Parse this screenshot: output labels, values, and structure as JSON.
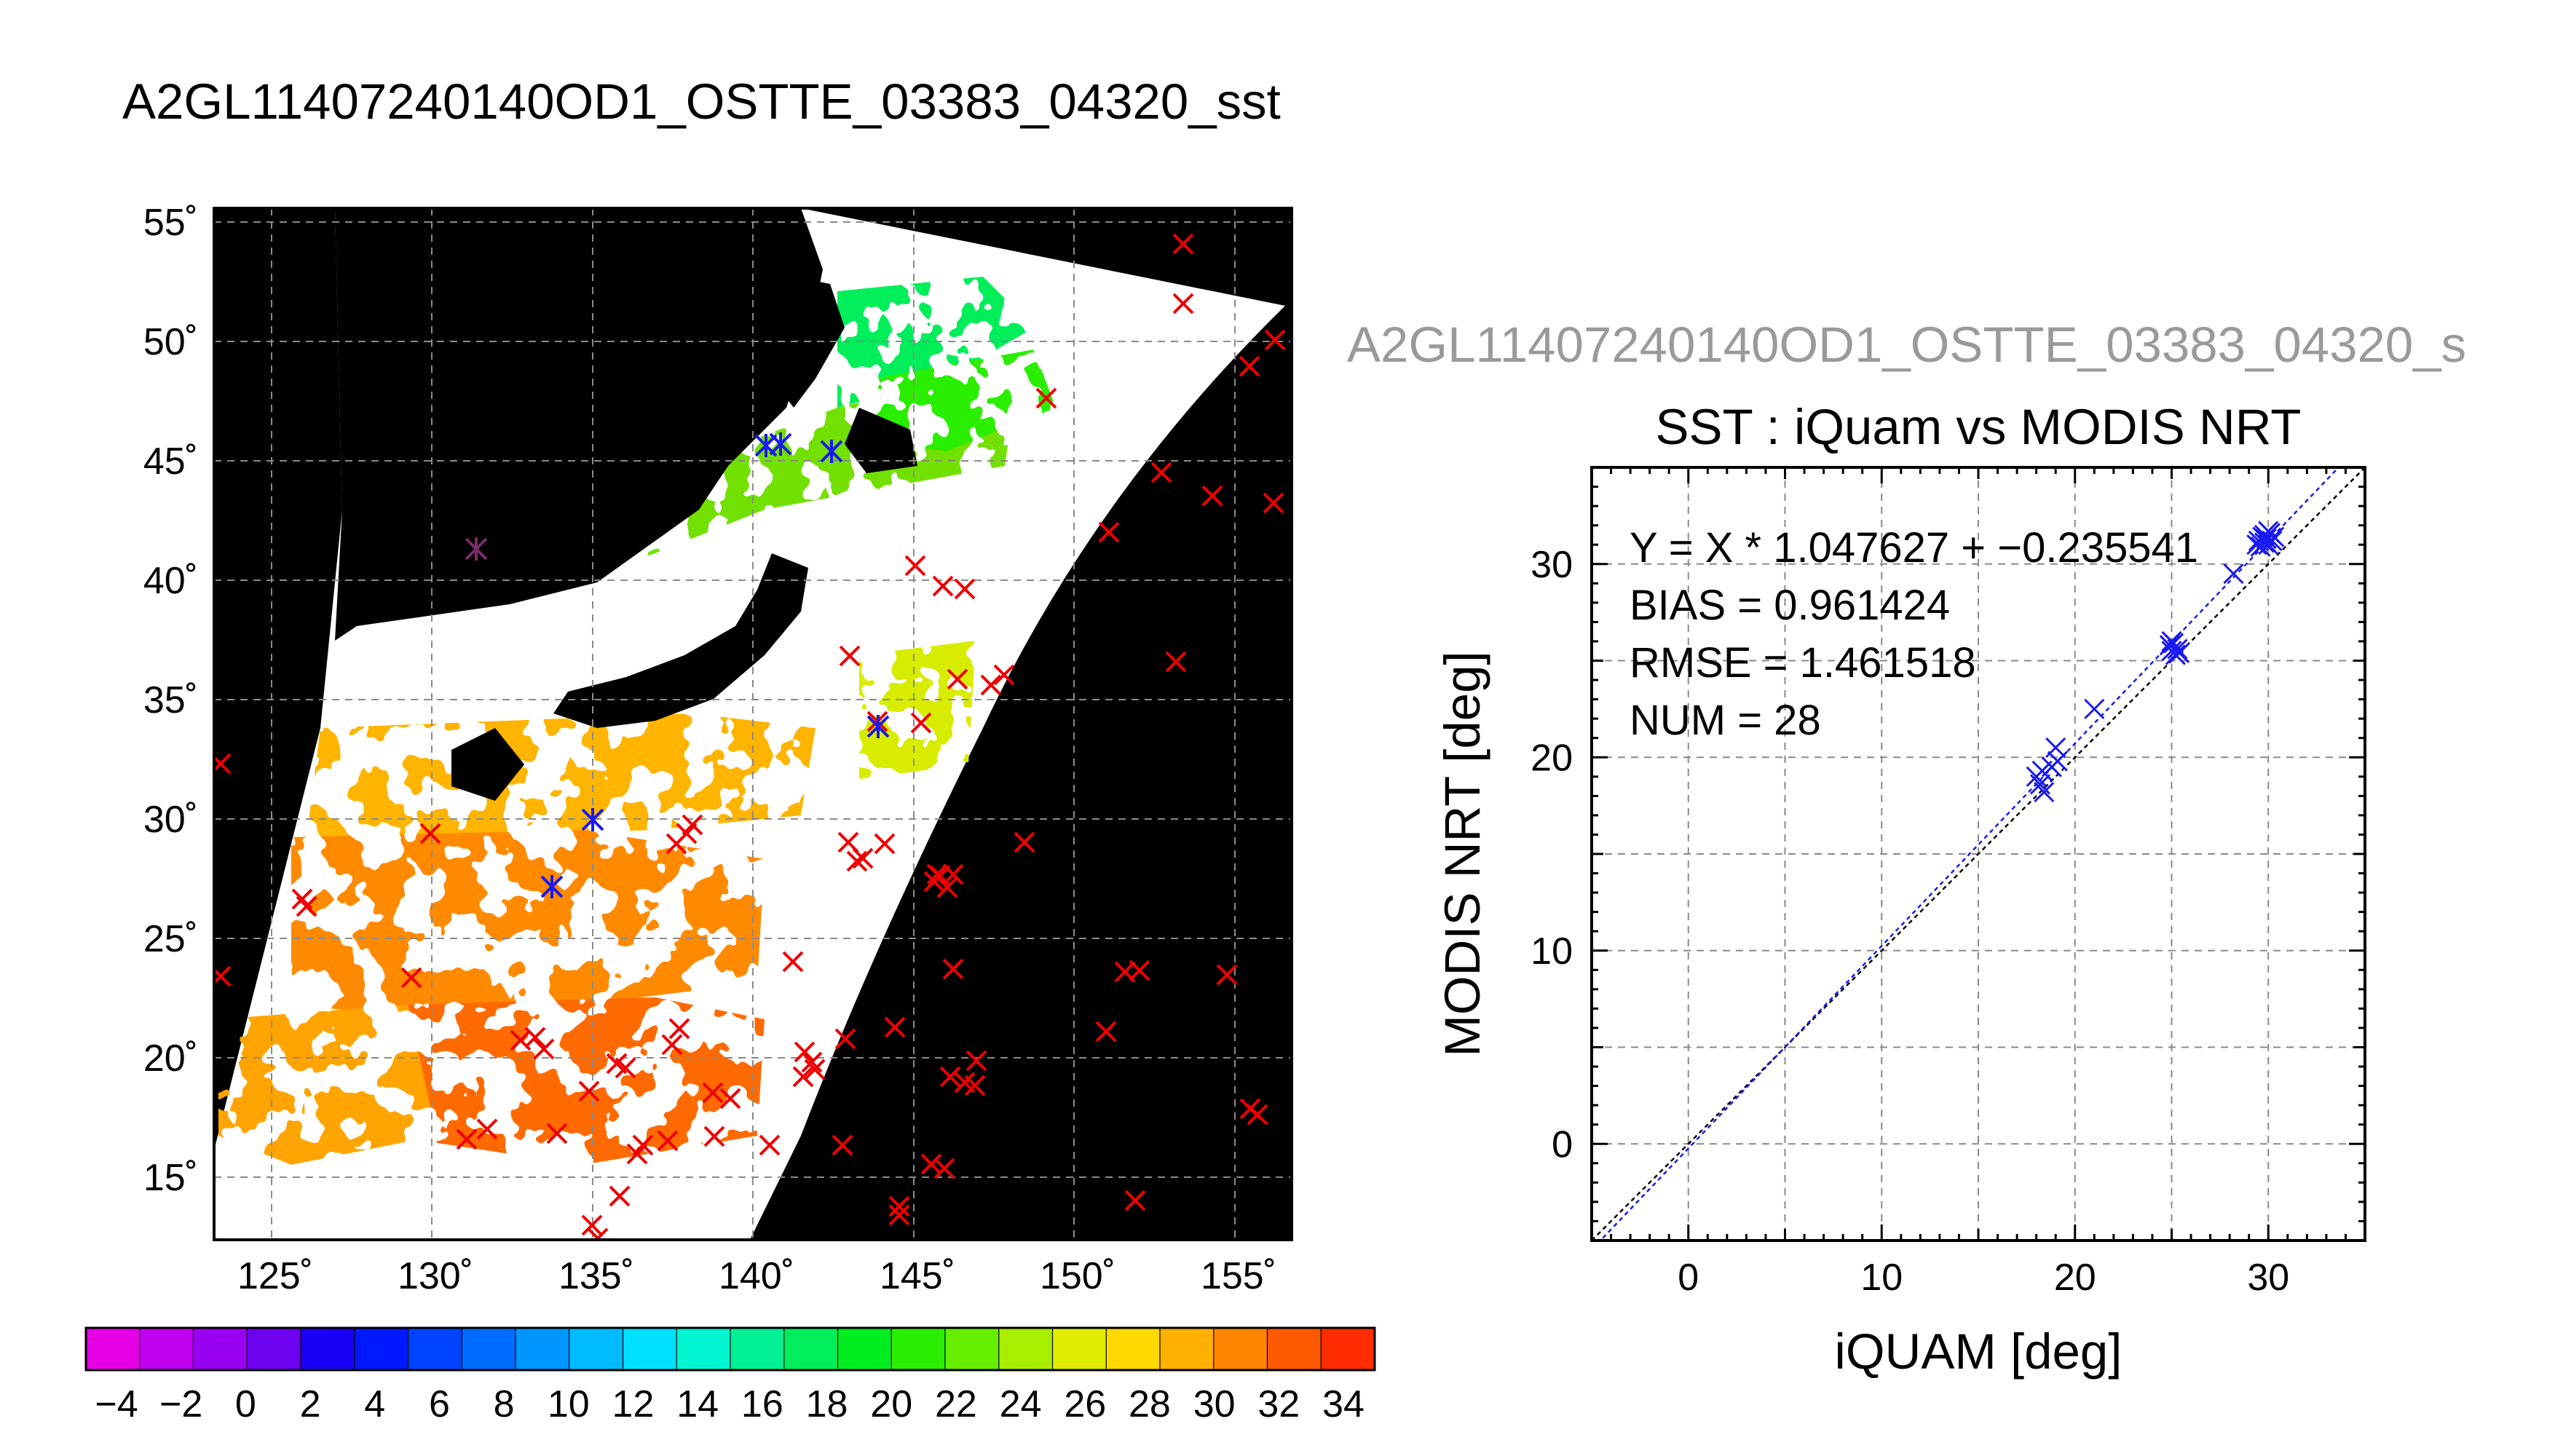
{
  "figure": {
    "main_title": "A2GL11407240140OD1_OSTTE_03383_04320_sst",
    "scatter_header": "A2GL11407240140OD1_OSTTE_03383_04320_s"
  },
  "colors": {
    "map_background": "#000000",
    "swath_no_data": "#ffffff",
    "gridline": "#8a8a8a",
    "buoy_marker": "#ee0000",
    "ship_marker": "#1a1aee",
    "fit_line": "#1a1aee",
    "identity_line": "#000000"
  },
  "colorbar": {
    "tick_labels": [
      "−4",
      "−2",
      "0",
      "2",
      "4",
      "6",
      "8",
      "10",
      "12",
      "14",
      "16",
      "18",
      "20",
      "22",
      "24",
      "26",
      "28",
      "30",
      "32",
      "34"
    ],
    "swatches": [
      "#e600e6",
      "#c200f0",
      "#9a00f2",
      "#6e00f0",
      "#1a00f5",
      "#0018ff",
      "#0044ff",
      "#006cff",
      "#0096ff",
      "#00bcff",
      "#00e0ff",
      "#00f5d0",
      "#00f096",
      "#00ee5a",
      "#00ee20",
      "#2aee00",
      "#66ee00",
      "#a8ee00",
      "#e0ec00",
      "#ffd800",
      "#ffb000",
      "#ff8400",
      "#ff5a00",
      "#ff2c00"
    ]
  },
  "map": {
    "lon_tick_labels": [
      "125˚",
      "130˚",
      "135˚",
      "140˚",
      "145˚",
      "150˚",
      "155˚"
    ],
    "lat_tick_labels": [
      "55˚",
      "50˚",
      "45˚",
      "40˚",
      "35˚",
      "30˚",
      "25˚",
      "20˚",
      "15˚"
    ]
  },
  "chart_data": {
    "type": "scatter",
    "title": "SST : iQuam vs MODIS NRT",
    "xlabel": "iQUAM [deg]",
    "ylabel": "MODIS NRT [deg]",
    "xlim": [
      -5,
      35
    ],
    "ylim": [
      -5,
      35
    ],
    "xticks": [
      0,
      10,
      20,
      30
    ],
    "yticks": [
      0,
      10,
      20,
      30
    ],
    "grid": true,
    "fit_text": "Y = X * 1.047627 + −0.235541",
    "bias_text": "BIAS = 0.961424",
    "rmse_text": "RMSE = 1.461518",
    "num_text": "NUM = 28",
    "fit": {
      "slope": 1.047627,
      "intercept": -0.235541
    },
    "points": [
      {
        "x": 18.0,
        "y": 19.0
      },
      {
        "x": 18.2,
        "y": 18.6
      },
      {
        "x": 18.4,
        "y": 18.2
      },
      {
        "x": 18.3,
        "y": 19.3
      },
      {
        "x": 18.8,
        "y": 19.5
      },
      {
        "x": 19.0,
        "y": 20.5
      },
      {
        "x": 19.1,
        "y": 19.8
      },
      {
        "x": 21.0,
        "y": 22.5
      },
      {
        "x": 24.9,
        "y": 25.8
      },
      {
        "x": 25.0,
        "y": 25.5
      },
      {
        "x": 25.1,
        "y": 25.9
      },
      {
        "x": 25.2,
        "y": 25.3
      },
      {
        "x": 25.3,
        "y": 25.6
      },
      {
        "x": 25.0,
        "y": 26.0
      },
      {
        "x": 25.4,
        "y": 25.4
      },
      {
        "x": 28.2,
        "y": 29.5
      },
      {
        "x": 29.5,
        "y": 31.2
      },
      {
        "x": 29.8,
        "y": 31.5
      },
      {
        "x": 30.0,
        "y": 31.0
      },
      {
        "x": 29.9,
        "y": 31.3
      },
      {
        "x": 30.1,
        "y": 31.6
      },
      {
        "x": 29.6,
        "y": 30.9
      },
      {
        "x": 30.2,
        "y": 31.2
      },
      {
        "x": 29.7,
        "y": 31.4
      },
      {
        "x": 30.0,
        "y": 31.7
      },
      {
        "x": 29.4,
        "y": 31.0
      },
      {
        "x": 30.3,
        "y": 31.4
      },
      {
        "x": 29.8,
        "y": 31.1
      }
    ]
  }
}
